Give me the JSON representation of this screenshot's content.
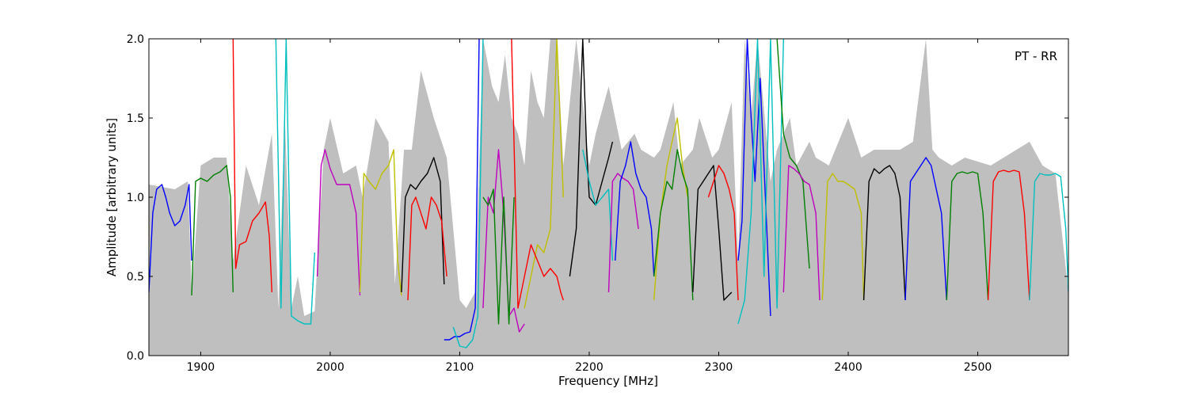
{
  "chart_data": {
    "type": "line",
    "annotation": "PT - RR",
    "xlabel": "Frequency [MHz]",
    "ylabel": "Amplitude [arbitrary units]",
    "xlim": [
      1860,
      2570
    ],
    "ylim": [
      0.0,
      2.0
    ],
    "xticks": [
      1900,
      2000,
      2100,
      2200,
      2300,
      2400,
      2500
    ],
    "yticks": [
      0.0,
      0.5,
      1.0,
      1.5,
      2.0
    ],
    "xtick_labels": [
      "1900",
      "2000",
      "2100",
      "2200",
      "2300",
      "2400",
      "2500"
    ],
    "ytick_labels": [
      "0.0",
      "0.5",
      "1.0",
      "1.5",
      "2.0"
    ],
    "grid": false,
    "colors": {
      "envelope": "#bfbfbf",
      "blue": "#0000ff",
      "green": "#008000",
      "red": "#ff0000",
      "cyan": "#00bfbf",
      "magenta": "#bf00bf",
      "yellow": "#bfbf00",
      "black": "#000000"
    },
    "envelope": {
      "x": [
        1860,
        1880,
        1890,
        1893,
        1900,
        1910,
        1920,
        1925,
        1935,
        1945,
        1955,
        1960,
        1965,
        1970,
        1975,
        1980,
        1988,
        1995,
        2000,
        2010,
        2020,
        2025,
        2035,
        2045,
        2050,
        2057,
        2063,
        2070,
        2080,
        2090,
        2100,
        2105,
        2112,
        2118,
        2125,
        2130,
        2135,
        2140,
        2145,
        2150,
        2155,
        2160,
        2165,
        2170,
        2175,
        2180,
        2190,
        2195,
        2200,
        2205,
        2215,
        2225,
        2235,
        2240,
        2250,
        2255,
        2265,
        2270,
        2280,
        2285,
        2295,
        2300,
        2310,
        2315,
        2320,
        2325,
        2330,
        2340,
        2345,
        2355,
        2360,
        2370,
        2375,
        2385,
        2400,
        2410,
        2420,
        2440,
        2450,
        2460,
        2465,
        2470,
        2480,
        2490,
        2510,
        2520,
        2540,
        2550,
        2560,
        2570
      ],
      "y": [
        1.08,
        1.05,
        1.1,
        0.4,
        1.2,
        1.25,
        1.25,
        0.6,
        1.2,
        0.95,
        1.4,
        0.3,
        1.5,
        0.3,
        0.5,
        0.25,
        0.28,
        1.3,
        1.5,
        1.15,
        1.2,
        1.0,
        1.5,
        1.35,
        0.45,
        1.3,
        1.3,
        1.8,
        1.5,
        1.25,
        0.35,
        0.3,
        0.4,
        2.0,
        1.7,
        1.6,
        1.9,
        1.5,
        1.4,
        1.2,
        1.8,
        1.6,
        1.5,
        2.0,
        2.0,
        1.2,
        2.0,
        1.6,
        1.2,
        1.4,
        1.7,
        1.3,
        1.4,
        1.3,
        1.25,
        1.3,
        1.6,
        1.2,
        1.3,
        1.5,
        1.25,
        1.3,
        1.6,
        0.6,
        2.0,
        1.5,
        2.0,
        1.1,
        1.3,
        1.5,
        1.2,
        1.35,
        1.25,
        1.2,
        1.5,
        1.25,
        1.3,
        1.3,
        1.35,
        2.0,
        1.3,
        1.25,
        1.2,
        1.25,
        1.2,
        1.25,
        1.35,
        1.2,
        1.15,
        0.4
      ]
    },
    "series": [
      {
        "color": "blue",
        "x": [
          1860,
          1863,
          1866,
          1870,
          1873,
          1876,
          1880,
          1884,
          1888,
          1891,
          1893
        ],
        "y": [
          0.4,
          0.9,
          1.05,
          1.08,
          1.0,
          0.9,
          0.82,
          0.85,
          0.95,
          1.08,
          0.6
        ]
      },
      {
        "color": "green",
        "x": [
          1893,
          1896,
          1900,
          1905,
          1910,
          1915,
          1920,
          1923,
          1925
        ],
        "y": [
          0.38,
          1.1,
          1.12,
          1.1,
          1.14,
          1.16,
          1.2,
          1.0,
          0.4
        ]
      },
      {
        "color": "red",
        "x": [
          1925,
          1927,
          1930,
          1935,
          1940,
          1945,
          1950,
          1953,
          1955
        ],
        "y": [
          2.0,
          0.55,
          0.7,
          0.72,
          0.85,
          0.9,
          0.97,
          0.75,
          0.4
        ]
      },
      {
        "color": "cyan",
        "x": [
          1958,
          1962,
          1966,
          1970,
          1975,
          1980,
          1985,
          1988
        ],
        "y": [
          2.0,
          0.3,
          2.0,
          0.25,
          0.22,
          0.2,
          0.2,
          0.65
        ]
      },
      {
        "color": "magenta",
        "x": [
          1990,
          1993,
          1996,
          2000,
          2005,
          2010,
          2015,
          2020,
          2023
        ],
        "y": [
          0.5,
          1.2,
          1.3,
          1.18,
          1.08,
          1.08,
          1.08,
          0.9,
          0.38
        ]
      },
      {
        "color": "yellow",
        "x": [
          2023,
          2026,
          2030,
          2035,
          2040,
          2045,
          2049,
          2052,
          2055
        ],
        "y": [
          0.4,
          1.15,
          1.1,
          1.05,
          1.15,
          1.2,
          1.3,
          0.6,
          0.38
        ]
      },
      {
        "color": "black",
        "x": [
          2055,
          2058,
          2062,
          2066,
          2070,
          2075,
          2080,
          2085,
          2088
        ],
        "y": [
          0.4,
          1.0,
          1.08,
          1.05,
          1.1,
          1.15,
          1.25,
          1.1,
          0.45
        ]
      },
      {
        "color": "red",
        "x": [
          2060,
          2063,
          2066,
          2070,
          2074,
          2078,
          2082,
          2086,
          2090
        ],
        "y": [
          0.35,
          0.95,
          1.0,
          0.9,
          0.8,
          1.0,
          0.95,
          0.85,
          0.5
        ]
      },
      {
        "color": "blue",
        "x": [
          2088,
          2092,
          2096,
          2100,
          2104,
          2108,
          2112,
          2115
        ],
        "y": [
          0.1,
          0.1,
          0.12,
          0.12,
          0.14,
          0.15,
          0.3,
          2.0
        ]
      },
      {
        "color": "cyan",
        "x": [
          2095,
          2100,
          2105,
          2110,
          2114,
          2118
        ],
        "y": [
          0.18,
          0.06,
          0.05,
          0.1,
          0.25,
          2.0
        ]
      },
      {
        "color": "magenta",
        "x": [
          2118,
          2122,
          2126,
          2130,
          2134,
          2138,
          2142,
          2146,
          2150
        ],
        "y": [
          0.3,
          1.0,
          0.9,
          1.3,
          0.9,
          0.25,
          0.3,
          0.15,
          0.2
        ]
      },
      {
        "color": "green",
        "x": [
          2118,
          2122,
          2126,
          2130,
          2134,
          2138,
          2142
        ],
        "y": [
          1.0,
          0.95,
          1.05,
          0.2,
          1.0,
          0.2,
          1.0
        ]
      },
      {
        "color": "yellow",
        "x": [
          2150,
          2155,
          2160,
          2165,
          2170,
          2175,
          2180
        ],
        "y": [
          0.3,
          0.5,
          0.7,
          0.65,
          0.8,
          2.0,
          1.0
        ]
      },
      {
        "color": "red",
        "x": [
          2140,
          2145,
          2150,
          2155,
          2160,
          2165,
          2170,
          2175,
          2178,
          2180
        ],
        "y": [
          2.0,
          0.3,
          0.5,
          0.7,
          0.6,
          0.5,
          0.55,
          0.5,
          0.4,
          0.35
        ]
      },
      {
        "color": "black",
        "x": [
          2185,
          2190,
          2195,
          2198,
          2200,
          2205,
          2210,
          2215,
          2218
        ],
        "y": [
          0.5,
          0.8,
          2.0,
          1.3,
          1.0,
          0.95,
          1.1,
          1.25,
          1.35
        ]
      },
      {
        "color": "cyan",
        "x": [
          2195,
          2200,
          2205,
          2210,
          2215,
          2218
        ],
        "y": [
          1.3,
          1.1,
          0.95,
          1.0,
          1.05,
          0.6
        ]
      },
      {
        "color": "magenta",
        "x": [
          2215,
          2218,
          2222,
          2226,
          2230,
          2234,
          2238
        ],
        "y": [
          0.4,
          1.1,
          1.15,
          1.12,
          1.1,
          1.05,
          0.8
        ]
      },
      {
        "color": "blue",
        "x": [
          2220,
          2224,
          2228,
          2232,
          2236,
          2240,
          2244,
          2248,
          2250
        ],
        "y": [
          0.6,
          1.1,
          1.2,
          1.35,
          1.15,
          1.05,
          1.0,
          0.8,
          0.5
        ]
      },
      {
        "color": "yellow",
        "x": [
          2250,
          2255,
          2260,
          2264,
          2268,
          2272,
          2276
        ],
        "y": [
          0.35,
          0.9,
          1.2,
          1.35,
          1.5,
          1.2,
          1.0
        ]
      },
      {
        "color": "green",
        "x": [
          2250,
          2255,
          2260,
          2264,
          2268,
          2272,
          2276,
          2280
        ],
        "y": [
          0.5,
          0.9,
          1.1,
          1.05,
          1.3,
          1.15,
          1.05,
          0.35
        ]
      },
      {
        "color": "black",
        "x": [
          2280,
          2284,
          2288,
          2292,
          2296,
          2300,
          2304,
          2310
        ],
        "y": [
          0.4,
          1.05,
          1.1,
          1.15,
          1.2,
          0.8,
          0.35,
          0.4
        ]
      },
      {
        "color": "red",
        "x": [
          2292,
          2296,
          2300,
          2304,
          2308,
          2312,
          2315
        ],
        "y": [
          1.0,
          1.1,
          1.2,
          1.15,
          1.05,
          0.9,
          0.35
        ]
      },
      {
        "color": "blue",
        "x": [
          2315,
          2318,
          2322,
          2325,
          2328,
          2332,
          2336,
          2340
        ],
        "y": [
          0.6,
          0.85,
          2.0,
          1.5,
          1.1,
          1.75,
          1.0,
          0.25
        ]
      },
      {
        "color": "cyan",
        "x": [
          2315,
          2320,
          2325,
          2330,
          2335,
          2340,
          2345,
          2350
        ],
        "y": [
          0.2,
          0.35,
          0.9,
          2.0,
          0.5,
          2.0,
          0.3,
          2.0
        ]
      },
      {
        "color": "green",
        "x": [
          2345,
          2350,
          2355,
          2360,
          2365,
          2370
        ],
        "y": [
          2.0,
          1.4,
          1.25,
          1.2,
          1.1,
          0.55
        ]
      },
      {
        "color": "magenta",
        "x": [
          2350,
          2354,
          2358,
          2362,
          2366,
          2370,
          2375,
          2378
        ],
        "y": [
          0.4,
          1.2,
          1.18,
          1.15,
          1.1,
          1.08,
          0.9,
          0.35
        ]
      },
      {
        "color": "yellow",
        "x": [
          2380,
          2384,
          2388,
          2392,
          2396,
          2400,
          2405,
          2410,
          2412
        ],
        "y": [
          0.35,
          1.1,
          1.15,
          1.1,
          1.1,
          1.08,
          1.05,
          0.9,
          0.35
        ]
      },
      {
        "color": "black",
        "x": [
          2412,
          2416,
          2420,
          2424,
          2428,
          2432,
          2436,
          2440,
          2444
        ],
        "y": [
          0.35,
          1.1,
          1.18,
          1.15,
          1.18,
          1.2,
          1.15,
          1.0,
          0.35
        ]
      },
      {
        "color": "blue",
        "x": [
          2444,
          2448,
          2452,
          2456,
          2460,
          2464,
          2468,
          2472,
          2476
        ],
        "y": [
          0.35,
          1.1,
          1.15,
          1.2,
          1.25,
          1.2,
          1.05,
          0.9,
          0.35
        ]
      },
      {
        "color": "green",
        "x": [
          2476,
          2480,
          2484,
          2488,
          2492,
          2496,
          2500,
          2504,
          2508
        ],
        "y": [
          0.35,
          1.1,
          1.15,
          1.16,
          1.15,
          1.16,
          1.15,
          0.9,
          0.35
        ]
      },
      {
        "color": "red",
        "x": [
          2508,
          2512,
          2516,
          2520,
          2524,
          2528,
          2532,
          2536,
          2540
        ],
        "y": [
          0.35,
          1.1,
          1.16,
          1.17,
          1.16,
          1.17,
          1.16,
          0.9,
          0.35
        ]
      },
      {
        "color": "cyan",
        "x": [
          2540,
          2544,
          2548,
          2552,
          2556,
          2560,
          2564,
          2568,
          2570
        ],
        "y": [
          0.35,
          1.1,
          1.15,
          1.14,
          1.14,
          1.15,
          1.13,
          0.8,
          0.4
        ]
      }
    ]
  }
}
